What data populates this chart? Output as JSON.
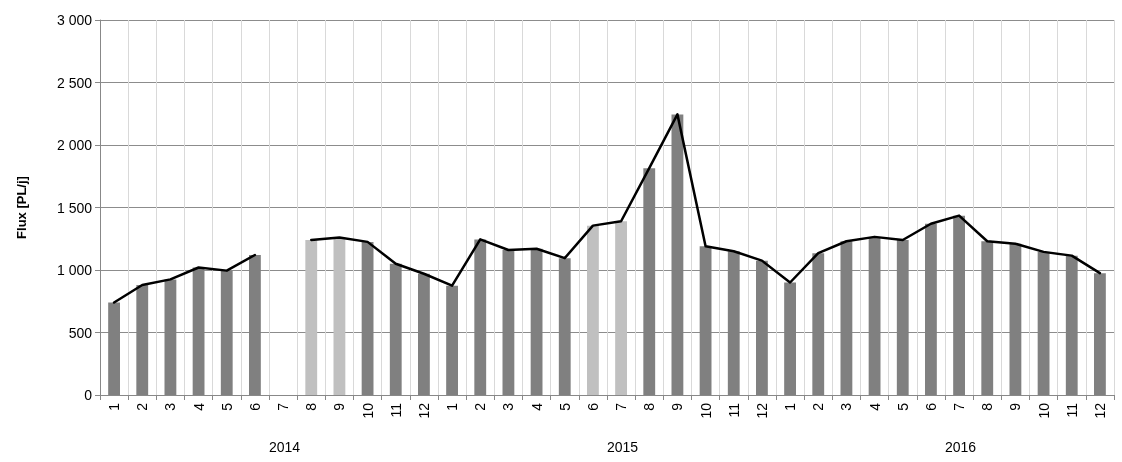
{
  "chart_data": {
    "type": "bar",
    "ylabel": "Flux [PL/j]",
    "categories": [
      "1",
      "2",
      "3",
      "4",
      "5",
      "6",
      "7",
      "8",
      "9",
      "10",
      "11",
      "12",
      "1",
      "2",
      "3",
      "4",
      "5",
      "6",
      "7",
      "8",
      "9",
      "10",
      "11",
      "12",
      "1",
      "2",
      "3",
      "4",
      "5",
      "6",
      "7",
      "8",
      "9",
      "10",
      "11",
      "12"
    ],
    "series": [
      {
        "values": [
          740,
          880,
          925,
          1020,
          995,
          1120,
          null,
          1240,
          1260,
          1225,
          1050,
          970,
          875,
          1245,
          1160,
          1170,
          1095,
          1355,
          1390,
          1815,
          2245,
          1190,
          1150,
          1075,
          900,
          1135,
          1230,
          1265,
          1240,
          1370,
          1435,
          1230,
          1210,
          1145,
          1115,
          975
        ],
        "colors": [
          "#808080",
          "#808080",
          "#808080",
          "#808080",
          "#808080",
          "#808080",
          "#808080",
          "#c0c0c0",
          "#c0c0c0",
          "#808080",
          "#808080",
          "#808080",
          "#808080",
          "#808080",
          "#808080",
          "#808080",
          "#808080",
          "#c0c0c0",
          "#c0c0c0",
          "#808080",
          "#808080",
          "#808080",
          "#808080",
          "#808080",
          "#808080",
          "#808080",
          "#808080",
          "#808080",
          "#808080",
          "#808080",
          "#808080",
          "#808080",
          "#808080",
          "#808080",
          "#808080",
          "#808080"
        ]
      },
      {
        "type": "line",
        "color": "#000000",
        "values": [
          740,
          880,
          925,
          1020,
          995,
          1120,
          null,
          1240,
          1260,
          1225,
          1050,
          970,
          875,
          1245,
          1160,
          1170,
          1095,
          1355,
          1390,
          1815,
          2245,
          1190,
          1150,
          1075,
          900,
          1135,
          1230,
          1265,
          1240,
          1370,
          1435,
          1230,
          1210,
          1145,
          1115,
          975
        ]
      }
    ],
    "ylim": [
      0,
      3000
    ],
    "yticks": [
      0,
      500,
      {
        "value": 1000,
        "label": "1 000"
      },
      {
        "value": 1500,
        "label": "1 500"
      },
      {
        "value": 2000,
        "label": "2 000"
      },
      {
        "value": 2500,
        "label": "2 500"
      },
      {
        "value": 3000,
        "label": "3 000"
      }
    ],
    "annotations": [
      "2014",
      "2015",
      "2016"
    ],
    "grid": true,
    "marker": "none",
    "line_style": "solid"
  }
}
